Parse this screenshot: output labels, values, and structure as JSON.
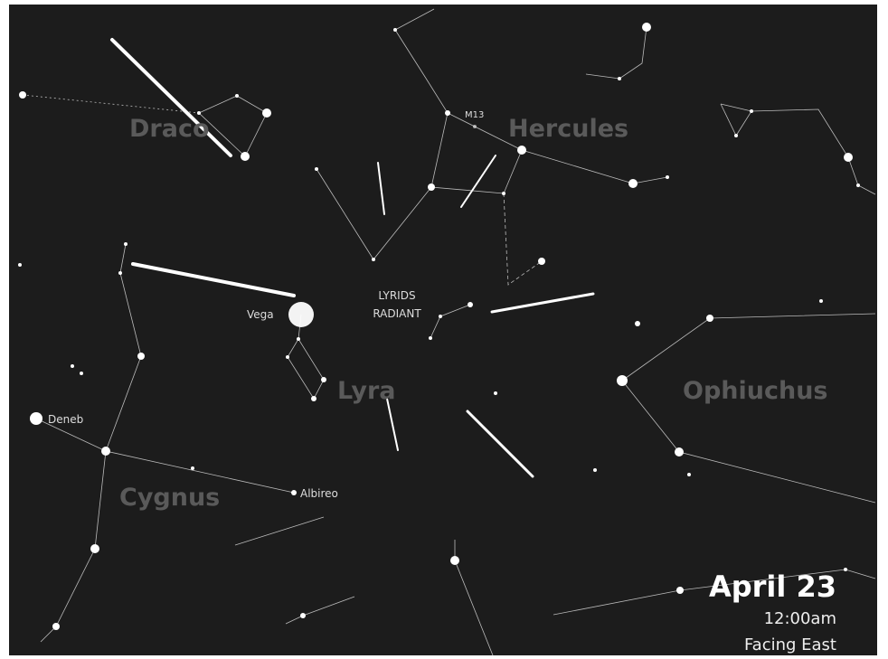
{
  "labels": {
    "constellations": [
      "Draco",
      "Hercules",
      "Lyra",
      "Ophiuchus",
      "Cygnus"
    ],
    "stars": [
      "M13",
      "Vega",
      "Deneb",
      "Albireo"
    ],
    "radiant": [
      "LYRIDS",
      "RADIANT"
    ]
  },
  "info": {
    "date": "April 23",
    "time": "12:00am",
    "direction": "Facing East"
  }
}
